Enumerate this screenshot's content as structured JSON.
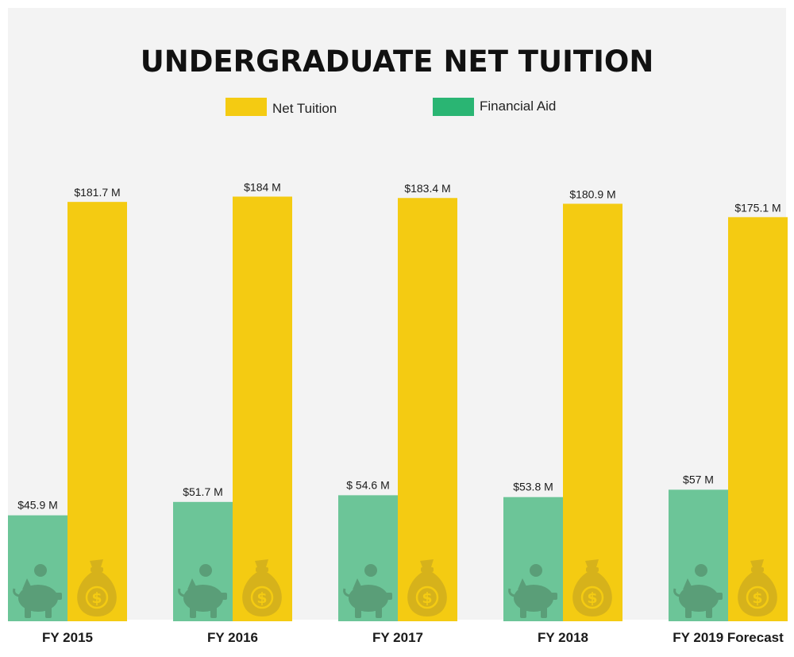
{
  "chart_data": {
    "type": "bar",
    "title": "UNDERGRADUATE NET TUITION",
    "categories": [
      "FY 2015",
      "FY 2016",
      "FY 2017",
      "FY 2018",
      "FY 2019 Forecast"
    ],
    "series": [
      {
        "name": "Financial Aid",
        "color": "#6cc598",
        "values": [
          45.9,
          51.7,
          54.6,
          53.8,
          57
        ],
        "labels": [
          "$45.9 M",
          "$51.7 M",
          "$ 54.6 M",
          "$53.8 M",
          "$57 M"
        ],
        "icon": "piggy-bank-icon"
      },
      {
        "name": "Net Tuition",
        "color": "#f4cb12",
        "values": [
          181.7,
          184,
          183.4,
          180.9,
          175.1
        ],
        "labels": [
          "$181.7 M",
          "$184 M",
          "$183.4 M",
          "$180.9 M",
          "$175.1 M"
        ],
        "icon": "money-bag-icon"
      }
    ],
    "unit": "M",
    "ylim": [
      0,
      200
    ],
    "grid": false,
    "legend_position": "top"
  },
  "colors": {
    "background": "#f3f3f3",
    "net_tuition": "#f4cb12",
    "financial_aid": "#6cc598",
    "piggy_icon": "#5a9e78",
    "bag_icon": "#d6b21b"
  }
}
